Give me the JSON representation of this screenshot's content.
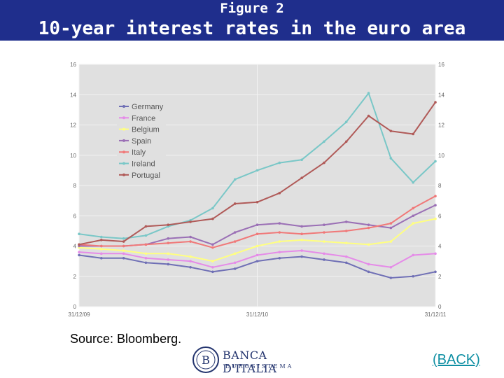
{
  "header": {
    "figure_label": "Figure 2",
    "title": "10-year interest rates in the euro area"
  },
  "source_note": "Source: Bloomberg.",
  "logo": {
    "name": "BANCA D'ITALIA",
    "subtitle": "EUROSISTEMA"
  },
  "back_link": "(BACK)",
  "colors": {
    "header_bg": "#1f2e8c",
    "plot_bg": "#e0e0e0",
    "back_link": "#0f8fa3"
  },
  "chart_data": {
    "type": "line",
    "title": "",
    "xlabel": "",
    "ylabel": "",
    "ylim": [
      0,
      16
    ],
    "yticks": [
      0,
      2,
      4,
      6,
      8,
      10,
      12,
      14,
      16
    ],
    "x_tick_labels": [
      "31/12/09",
      "31/12/10",
      "31/12/11"
    ],
    "x": [
      "31/12/09",
      "15/02/10",
      "31/03/10",
      "15/05/10",
      "30/06/10",
      "15/08/10",
      "30/09/10",
      "15/11/10",
      "31/12/10",
      "15/02/11",
      "31/03/11",
      "15/05/11",
      "30/06/11",
      "15/08/11",
      "30/09/11",
      "15/11/11",
      "31/12/11"
    ],
    "grid": true,
    "legend_position": "top-left",
    "series": [
      {
        "name": "Germany",
        "color": "#6f6fb5",
        "values": [
          3.4,
          3.2,
          3.2,
          2.9,
          2.8,
          2.6,
          2.3,
          2.5,
          3.0,
          3.2,
          3.3,
          3.1,
          2.9,
          2.3,
          1.9,
          2.0,
          2.3
        ]
      },
      {
        "name": "France",
        "color": "#e58be8",
        "values": [
          3.6,
          3.5,
          3.5,
          3.2,
          3.1,
          3.0,
          2.6,
          2.9,
          3.4,
          3.6,
          3.7,
          3.5,
          3.3,
          2.8,
          2.6,
          3.4,
          3.5
        ]
      },
      {
        "name": "Belgium",
        "color": "#ffff80",
        "values": [
          3.9,
          3.8,
          3.7,
          3.5,
          3.5,
          3.3,
          3.0,
          3.5,
          4.0,
          4.3,
          4.4,
          4.3,
          4.2,
          4.1,
          4.3,
          5.5,
          5.8
        ]
      },
      {
        "name": "Spain",
        "color": "#9a6fb5",
        "values": [
          4.0,
          4.0,
          4.0,
          4.1,
          4.5,
          4.6,
          4.1,
          4.9,
          5.4,
          5.5,
          5.3,
          5.4,
          5.6,
          5.4,
          5.2,
          6.0,
          6.7
        ]
      },
      {
        "name": "Italy",
        "color": "#f07878",
        "values": [
          4.1,
          4.0,
          4.0,
          4.1,
          4.2,
          4.3,
          3.9,
          4.3,
          4.8,
          4.9,
          4.8,
          4.9,
          5.0,
          5.2,
          5.5,
          6.5,
          7.3
        ]
      },
      {
        "name": "Ireland",
        "color": "#79c7c7",
        "values": [
          4.8,
          4.6,
          4.5,
          4.7,
          5.3,
          5.7,
          6.5,
          8.4,
          9.0,
          9.5,
          9.7,
          10.9,
          12.2,
          14.1,
          9.8,
          8.2,
          9.6
        ]
      },
      {
        "name": "Portugal",
        "color": "#b05a58",
        "values": [
          4.1,
          4.4,
          4.3,
          5.3,
          5.4,
          5.6,
          5.8,
          6.8,
          6.9,
          7.5,
          8.5,
          9.5,
          10.9,
          12.6,
          11.6,
          11.4,
          13.5
        ]
      }
    ]
  }
}
